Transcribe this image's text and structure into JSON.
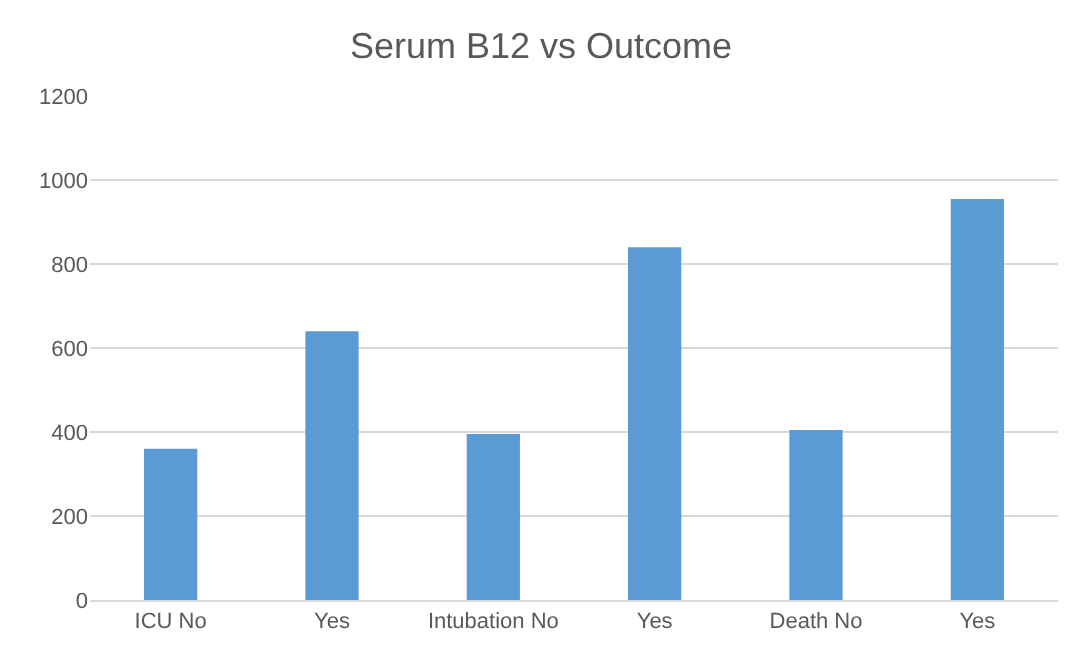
{
  "chart_data": {
    "type": "bar",
    "title": "Serum B12 vs Outcome",
    "categories": [
      "ICU No",
      "Yes",
      "Intubation No",
      "Yes",
      "Death No",
      "Yes"
    ],
    "values": [
      360,
      640,
      395,
      840,
      405,
      955
    ],
    "color": "#5b9bd5",
    "ylim": [
      0,
      1200
    ],
    "yticks": [
      0,
      200,
      400,
      600,
      800,
      1000,
      1200
    ],
    "grid": "y"
  }
}
